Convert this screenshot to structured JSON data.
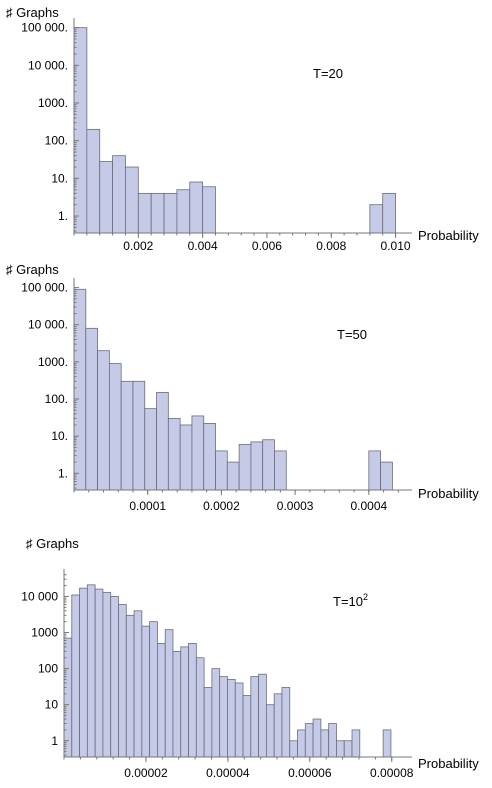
{
  "chart_data": [
    {
      "type": "bar",
      "ylabel": "♯ Graphs",
      "xlabel": "Probability",
      "annotation": "T=20",
      "y_scale": "log",
      "x_range": [
        0,
        0.0102
      ],
      "y_range_log10": [
        -0.45,
        5.15
      ],
      "y_ticks": [
        {
          "value": 1,
          "label": "1."
        },
        {
          "value": 10,
          "label": "10."
        },
        {
          "value": 100,
          "label": "100."
        },
        {
          "value": 1000,
          "label": "1000."
        },
        {
          "value": 10000,
          "label": "10 000."
        },
        {
          "value": 100000,
          "label": "100 000."
        }
      ],
      "x_ticks": [
        {
          "value": 0.002,
          "label": "0.002"
        },
        {
          "value": 0.004,
          "label": "0.004"
        },
        {
          "value": 0.006,
          "label": "0.006"
        },
        {
          "value": 0.008,
          "label": "0.008"
        },
        {
          "value": 0.01,
          "label": "0.010"
        }
      ],
      "bin_width": 0.0004,
      "bins_start": [
        0.0,
        0.0004,
        0.0008,
        0.0012,
        0.0016,
        0.002,
        0.0024,
        0.0028,
        0.0032,
        0.0036,
        0.004,
        0.0044,
        0.0092,
        0.0096
      ],
      "values": [
        100000,
        200,
        28,
        40,
        20,
        4,
        4,
        4,
        5,
        8,
        6,
        0,
        2,
        4
      ]
    },
    {
      "type": "bar",
      "ylabel": "♯ Graphs",
      "xlabel": "Probability",
      "annotation": "T=50",
      "y_scale": "log",
      "x_range": [
        0,
        0.000445
      ],
      "y_range_log10": [
        -0.45,
        5.15
      ],
      "y_ticks": [
        {
          "value": 1,
          "label": "1."
        },
        {
          "value": 10,
          "label": "10."
        },
        {
          "value": 100,
          "label": "100."
        },
        {
          "value": 1000,
          "label": "1000."
        },
        {
          "value": 10000,
          "label": "10 000."
        },
        {
          "value": 100000,
          "label": "100 000."
        }
      ],
      "x_ticks": [
        {
          "value": 0.0001,
          "label": "0.0001"
        },
        {
          "value": 0.0002,
          "label": "0.0002"
        },
        {
          "value": 0.0003,
          "label": "0.0003"
        },
        {
          "value": 0.0004,
          "label": "0.0004"
        }
      ],
      "bin_width": 1.6e-05,
      "bins_start": [
        0.0,
        1.6e-05,
        3.2e-05,
        4.8e-05,
        6.4e-05,
        8e-05,
        9.6e-05,
        0.000112,
        0.000128,
        0.000144,
        0.00016,
        0.000176,
        0.000192,
        0.000208,
        0.000224,
        0.00024,
        0.000256,
        0.000272,
        0.000288,
        0.000304,
        0.00032,
        0.000336,
        0.0004,
        0.000416
      ],
      "values": [
        90000,
        8000,
        2000,
        900,
        300,
        300,
        55,
        150,
        30,
        20,
        35,
        22,
        4,
        2,
        6,
        7,
        8,
        4,
        0,
        0,
        0,
        0,
        4,
        2
      ]
    },
    {
      "type": "bar",
      "ylabel": "♯ Graphs",
      "xlabel": "Probability",
      "annotation": "T=10",
      "annotation_sup": "2",
      "y_scale": "log",
      "x_range": [
        0,
        8.25e-05
      ],
      "y_range_log10": [
        -0.45,
        4.65
      ],
      "y_ticks": [
        {
          "value": 1,
          "label": "1"
        },
        {
          "value": 10,
          "label": "10"
        },
        {
          "value": 100,
          "label": "100"
        },
        {
          "value": 1000,
          "label": "1000"
        },
        {
          "value": 10000,
          "label": "10 000"
        }
      ],
      "x_ticks": [
        {
          "value": 2e-05,
          "label": "0.00002"
        },
        {
          "value": 4e-05,
          "label": "0.00004"
        },
        {
          "value": 6e-05,
          "label": "0.00006"
        },
        {
          "value": 8e-05,
          "label": "0.00008"
        }
      ],
      "bin_width": 1.9e-06,
      "values": [
        700,
        11000,
        17000,
        21000,
        16000,
        13000,
        10000,
        6000,
        3000,
        4000,
        1500,
        2000,
        500,
        1200,
        300,
        400,
        500,
        200,
        30,
        100,
        60,
        50,
        40,
        18,
        60,
        70,
        10,
        20,
        30,
        1,
        2,
        3,
        4,
        2,
        3,
        1,
        1,
        2,
        0,
        0,
        0,
        2
      ]
    }
  ]
}
